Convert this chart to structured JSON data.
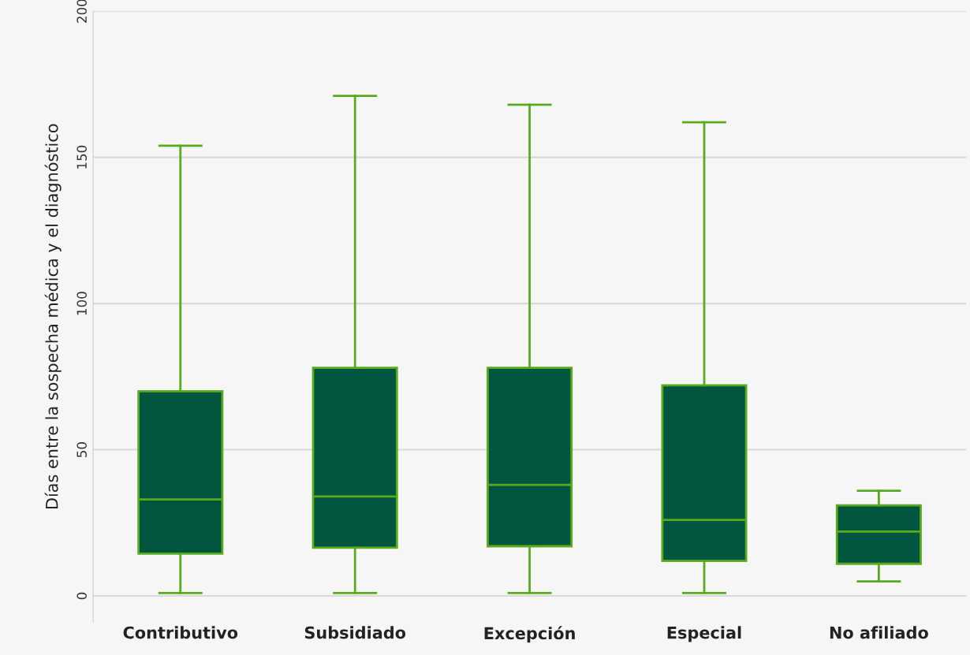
{
  "chart_data": {
    "type": "box",
    "ylabel": "Días entre la sospecha médica y el diagnóstico",
    "categories": [
      "Contributivo",
      "Subsidiado",
      "Excepción",
      "Especial",
      "No afiliado"
    ],
    "series": [
      {
        "color": "#02553f",
        "boxes": [
          {
            "low": 1,
            "q1": 14.5,
            "median": 33,
            "q3": 70,
            "high": 154
          },
          {
            "low": 1,
            "q1": 16.5,
            "median": 34,
            "q3": 78,
            "high": 171
          },
          {
            "low": 1,
            "q1": 17,
            "median": 38,
            "q3": 78,
            "high": 168
          },
          {
            "low": 1,
            "q1": 12,
            "median": 26,
            "q3": 72,
            "high": 162
          },
          {
            "low": 5,
            "q1": 11,
            "median": 22,
            "q3": 31,
            "high": 36
          }
        ]
      }
    ],
    "ylim": [
      -9,
      200
    ],
    "yticks": [
      0,
      50,
      100,
      150,
      200
    ],
    "grid": "y"
  }
}
